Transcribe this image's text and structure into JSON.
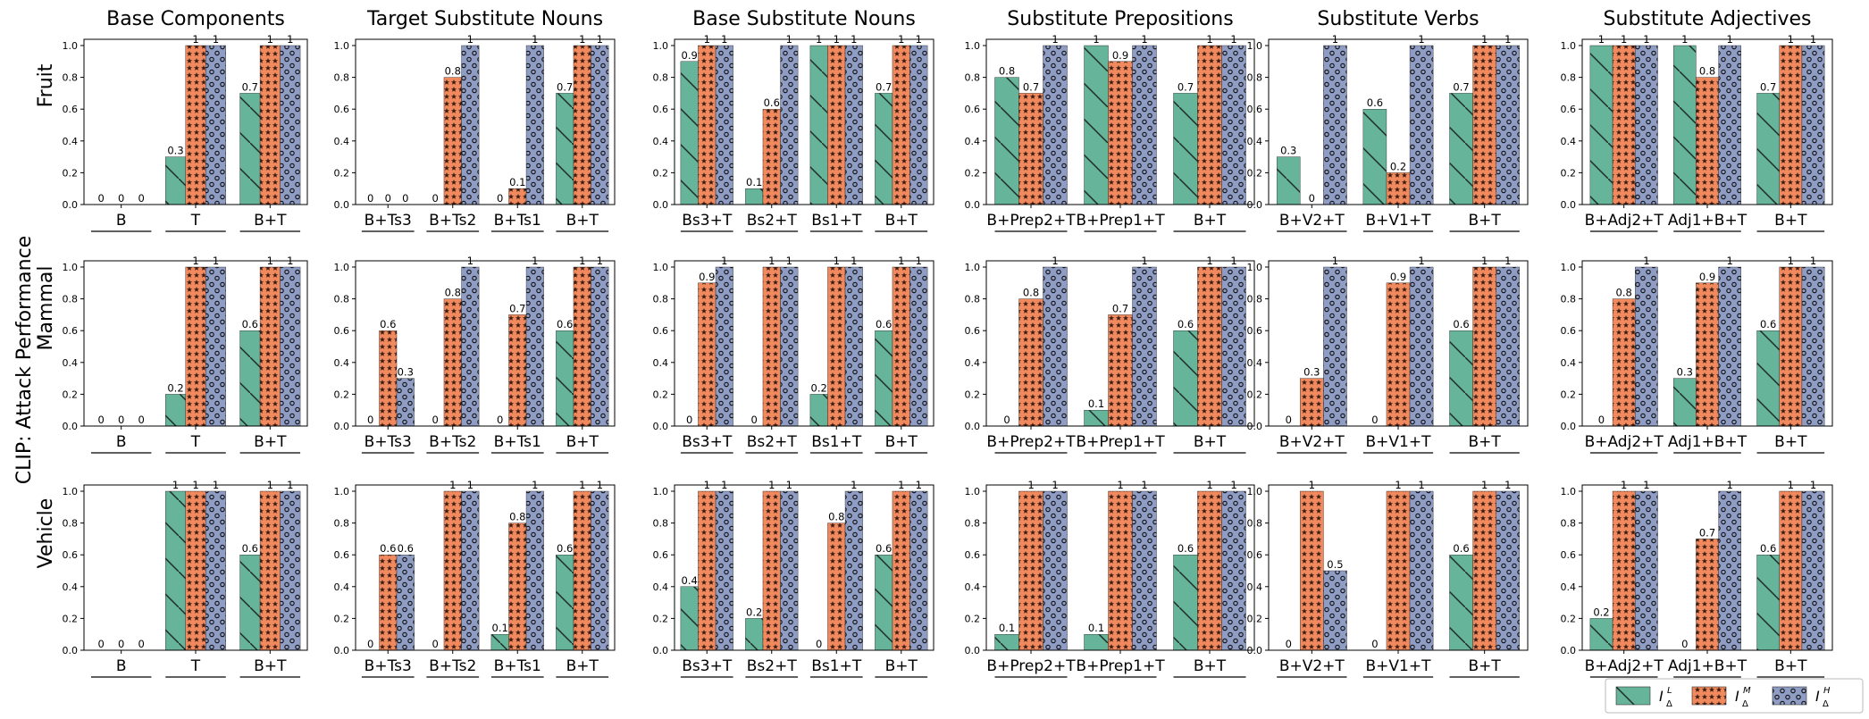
{
  "figure": {
    "y_axis_title": "CLIP: Attack Performance",
    "row_labels": [
      "Fruit",
      "Mammal",
      "Vehicle"
    ],
    "legend": [
      {
        "label": "I",
        "sub": "Δ",
        "sup": "L",
        "color": "#66b49a"
      },
      {
        "label": "I",
        "sub": "Δ",
        "sup": "M",
        "color": "#f0895d"
      },
      {
        "label": "I",
        "sub": "Δ",
        "sup": "H",
        "color": "#8f9dc5"
      }
    ],
    "yticks": [
      "0.0",
      "0.2",
      "0.4",
      "0.6",
      "0.8",
      "1.0"
    ]
  },
  "chart_data": [
    {
      "type": "bar",
      "row": "Fruit",
      "title": "Base Components",
      "categories": [
        "B",
        "T",
        "B+T"
      ],
      "ylim": [
        0,
        1
      ],
      "series": [
        {
          "name": "I_L",
          "values": [
            0,
            0.3,
            0.7
          ]
        },
        {
          "name": "I_M",
          "values": [
            0,
            1,
            1
          ]
        },
        {
          "name": "I_H",
          "values": [
            0,
            1,
            1
          ]
        }
      ],
      "labels": [
        [
          "0",
          "0.3",
          "0.7"
        ],
        [
          "0",
          "1",
          "1"
        ],
        [
          "0",
          "1",
          "1"
        ]
      ]
    },
    {
      "type": "bar",
      "row": "Fruit",
      "title": "Target Substitute Nouns",
      "categories": [
        "B+Ts3",
        "B+Ts2",
        "B+Ts1",
        "B+T"
      ],
      "ylim": [
        0,
        1
      ],
      "series": [
        {
          "name": "I_L",
          "values": [
            0,
            0,
            0,
            0.7
          ]
        },
        {
          "name": "I_M",
          "values": [
            0,
            0.8,
            0.1,
            1
          ]
        },
        {
          "name": "I_H",
          "values": [
            0,
            1,
            1,
            1
          ]
        }
      ],
      "labels": [
        [
          "0",
          "0",
          "0",
          "0.7"
        ],
        [
          "0",
          "0.8",
          "0.1",
          "1"
        ],
        [
          "0",
          "1",
          "1",
          "1"
        ]
      ]
    },
    {
      "type": "bar",
      "row": "Fruit",
      "title": "Base Substitute Nouns",
      "categories": [
        "Bs3+T",
        "Bs2+T",
        "Bs1+T",
        "B+T"
      ],
      "ylim": [
        0,
        1
      ],
      "series": [
        {
          "name": "I_L",
          "values": [
            0.9,
            0.1,
            1,
            0.7
          ]
        },
        {
          "name": "I_M",
          "values": [
            1,
            0.6,
            1,
            1
          ]
        },
        {
          "name": "I_H",
          "values": [
            1,
            1,
            1,
            1
          ]
        }
      ],
      "labels": [
        [
          "0.9",
          "0.1",
          "1",
          "0.7"
        ],
        [
          "1",
          "0.6",
          "1",
          "1"
        ],
        [
          "1",
          "1",
          "1",
          "1"
        ]
      ]
    },
    {
      "type": "bar",
      "row": "Fruit",
      "title": "Substitute Prepositions",
      "categories": [
        "B+Prep2+T",
        "B+Prep1+T",
        "B+T"
      ],
      "ylim": [
        0,
        1
      ],
      "series": [
        {
          "name": "I_L",
          "values": [
            0.8,
            1,
            0.7
          ]
        },
        {
          "name": "I_M",
          "values": [
            0.7,
            0.9,
            1
          ]
        },
        {
          "name": "I_H",
          "values": [
            1,
            1,
            1
          ]
        }
      ],
      "labels": [
        [
          "0.8",
          "1",
          "0.7"
        ],
        [
          "0.7",
          "0.9",
          "1"
        ],
        [
          "1",
          "1",
          "1"
        ]
      ]
    },
    {
      "type": "bar",
      "row": "Fruit",
      "title": "Substitute Verbs",
      "categories": [
        "B+V2+T",
        "B+V1+T",
        "B+T"
      ],
      "ylim": [
        0,
        1
      ],
      "series": [
        {
          "name": "I_L",
          "values": [
            0.3,
            0.6,
            0.7
          ]
        },
        {
          "name": "I_M",
          "values": [
            0,
            0.2,
            1
          ]
        },
        {
          "name": "I_H",
          "values": [
            1,
            1,
            1
          ]
        }
      ],
      "labels": [
        [
          "0.3",
          "0.6",
          "0.7"
        ],
        [
          "0",
          "0.2",
          "1"
        ],
        [
          "1",
          "1",
          "1"
        ]
      ]
    },
    {
      "type": "bar",
      "row": "Fruit",
      "title": "Substitute Adjectives",
      "categories": [
        "B+Adj2+T",
        "Adj1+B+T",
        "B+T"
      ],
      "ylim": [
        0,
        1
      ],
      "series": [
        {
          "name": "I_L",
          "values": [
            1,
            1,
            0.7
          ]
        },
        {
          "name": "I_M",
          "values": [
            1,
            0.8,
            1
          ]
        },
        {
          "name": "I_H",
          "values": [
            1,
            1,
            1
          ]
        }
      ],
      "labels": [
        [
          "1",
          "1",
          "0.7"
        ],
        [
          "1",
          "0.8",
          "1"
        ],
        [
          "1",
          "1",
          "1"
        ]
      ]
    },
    {
      "type": "bar",
      "row": "Mammal",
      "title": "Base Components",
      "categories": [
        "B",
        "T",
        "B+T"
      ],
      "ylim": [
        0,
        1
      ],
      "series": [
        {
          "name": "I_L",
          "values": [
            0,
            0.2,
            0.6
          ]
        },
        {
          "name": "I_M",
          "values": [
            0,
            1,
            1
          ]
        },
        {
          "name": "I_H",
          "values": [
            0,
            1,
            1
          ]
        }
      ],
      "labels": [
        [
          "0",
          "0.2",
          "0.6"
        ],
        [
          "0",
          "1",
          "1"
        ],
        [
          "0",
          "1",
          "1"
        ]
      ]
    },
    {
      "type": "bar",
      "row": "Mammal",
      "title": "Target Substitute Nouns",
      "categories": [
        "B+Ts3",
        "B+Ts2",
        "B+Ts1",
        "B+T"
      ],
      "ylim": [
        0,
        1
      ],
      "series": [
        {
          "name": "I_L",
          "values": [
            0,
            0,
            0,
            0.6
          ]
        },
        {
          "name": "I_M",
          "values": [
            0.6,
            0.8,
            0.7,
            1
          ]
        },
        {
          "name": "I_H",
          "values": [
            0.3,
            1,
            1,
            1
          ]
        }
      ],
      "labels": [
        [
          "0",
          "0",
          "0",
          "0.6"
        ],
        [
          "0.6",
          "0.8",
          "0.7",
          "1"
        ],
        [
          "0.3",
          "1",
          "1",
          "1"
        ]
      ]
    },
    {
      "type": "bar",
      "row": "Mammal",
      "title": "Base Substitute Nouns",
      "categories": [
        "Bs3+T",
        "Bs2+T",
        "Bs1+T",
        "B+T"
      ],
      "ylim": [
        0,
        1
      ],
      "series": [
        {
          "name": "I_L",
          "values": [
            0,
            0,
            0.2,
            0.6
          ]
        },
        {
          "name": "I_M",
          "values": [
            0.9,
            1,
            1,
            1
          ]
        },
        {
          "name": "I_H",
          "values": [
            1,
            1,
            1,
            1
          ]
        }
      ],
      "labels": [
        [
          "0",
          "0",
          "0.2",
          "0.6"
        ],
        [
          "0.9",
          "1",
          "1",
          "1"
        ],
        [
          "1",
          "1",
          "1",
          "1"
        ]
      ]
    },
    {
      "type": "bar",
      "row": "Mammal",
      "title": "Substitute Prepositions",
      "categories": [
        "B+Prep2+T",
        "B+Prep1+T",
        "B+T"
      ],
      "ylim": [
        0,
        1
      ],
      "series": [
        {
          "name": "I_L",
          "values": [
            0,
            0.1,
            0.6
          ]
        },
        {
          "name": "I_M",
          "values": [
            0.8,
            0.7,
            1
          ]
        },
        {
          "name": "I_H",
          "values": [
            1,
            1,
            1
          ]
        }
      ],
      "labels": [
        [
          "0",
          "0.1",
          "0.6"
        ],
        [
          "0.8",
          "0.7",
          "1"
        ],
        [
          "1",
          "1",
          "1"
        ]
      ]
    },
    {
      "type": "bar",
      "row": "Mammal",
      "title": "Substitute Verbs",
      "categories": [
        "B+V2+T",
        "B+V1+T",
        "B+T"
      ],
      "ylim": [
        0,
        1
      ],
      "series": [
        {
          "name": "I_L",
          "values": [
            0,
            0,
            0.6
          ]
        },
        {
          "name": "I_M",
          "values": [
            0.3,
            0.9,
            1
          ]
        },
        {
          "name": "I_H",
          "values": [
            1,
            1,
            1
          ]
        }
      ],
      "labels": [
        [
          "0",
          "0",
          "0.6"
        ],
        [
          "0.3",
          "0.9",
          "1"
        ],
        [
          "1",
          "1",
          "1"
        ]
      ]
    },
    {
      "type": "bar",
      "row": "Mammal",
      "title": "Substitute Adjectives",
      "categories": [
        "B+Adj2+T",
        "Adj1+B+T",
        "B+T"
      ],
      "ylim": [
        0,
        1
      ],
      "series": [
        {
          "name": "I_L",
          "values": [
            0,
            0.3,
            0.6
          ]
        },
        {
          "name": "I_M",
          "values": [
            0.8,
            0.9,
            1
          ]
        },
        {
          "name": "I_H",
          "values": [
            1,
            1,
            1
          ]
        }
      ],
      "labels": [
        [
          "0",
          "0.3",
          "0.6"
        ],
        [
          "0.8",
          "0.9",
          "1"
        ],
        [
          "1",
          "1",
          "1"
        ]
      ]
    },
    {
      "type": "bar",
      "row": "Vehicle",
      "title": "Base Components",
      "categories": [
        "B",
        "T",
        "B+T"
      ],
      "ylim": [
        0,
        1
      ],
      "series": [
        {
          "name": "I_L",
          "values": [
            0,
            1,
            0.6
          ]
        },
        {
          "name": "I_M",
          "values": [
            0,
            1,
            1
          ]
        },
        {
          "name": "I_H",
          "values": [
            0,
            1,
            1
          ]
        }
      ],
      "labels": [
        [
          "0",
          "1",
          "0.6"
        ],
        [
          "0",
          "1",
          "1"
        ],
        [
          "0",
          "1",
          "1"
        ]
      ]
    },
    {
      "type": "bar",
      "row": "Vehicle",
      "title": "Target Substitute Nouns",
      "categories": [
        "B+Ts3",
        "B+Ts2",
        "B+Ts1",
        "B+T"
      ],
      "ylim": [
        0,
        1
      ],
      "series": [
        {
          "name": "I_L",
          "values": [
            0,
            0,
            0.1,
            0.6
          ]
        },
        {
          "name": "I_M",
          "values": [
            0.6,
            1,
            0.8,
            1
          ]
        },
        {
          "name": "I_H",
          "values": [
            0.6,
            1,
            1,
            1
          ]
        }
      ],
      "labels": [
        [
          "0",
          "0",
          "0.1",
          "0.6"
        ],
        [
          "0.6",
          "1",
          "0.8",
          "1"
        ],
        [
          "0.6",
          "1",
          "1",
          "1"
        ]
      ]
    },
    {
      "type": "bar",
      "row": "Vehicle",
      "title": "Base Substitute Nouns",
      "categories": [
        "Bs3+T",
        "Bs2+T",
        "Bs1+T",
        "B+T"
      ],
      "ylim": [
        0,
        1
      ],
      "series": [
        {
          "name": "I_L",
          "values": [
            0.4,
            0.2,
            0,
            0.6
          ]
        },
        {
          "name": "I_M",
          "values": [
            1,
            1,
            0.8,
            1
          ]
        },
        {
          "name": "I_H",
          "values": [
            1,
            1,
            1,
            1
          ]
        }
      ],
      "labels": [
        [
          "0.4",
          "0.2",
          "0",
          "0.6"
        ],
        [
          "1",
          "1",
          "0.8",
          "1"
        ],
        [
          "1",
          "1",
          "1",
          "1"
        ]
      ]
    },
    {
      "type": "bar",
      "row": "Vehicle",
      "title": "Substitute Prepositions",
      "categories": [
        "B+Prep2+T",
        "B+Prep1+T",
        "B+T"
      ],
      "ylim": [
        0,
        1
      ],
      "series": [
        {
          "name": "I_L",
          "values": [
            0.1,
            0.1,
            0.6
          ]
        },
        {
          "name": "I_M",
          "values": [
            1,
            1,
            1
          ]
        },
        {
          "name": "I_H",
          "values": [
            1,
            1,
            1
          ]
        }
      ],
      "labels": [
        [
          "0.1",
          "0.1",
          "0.6"
        ],
        [
          "1",
          "1",
          "1"
        ],
        [
          "1",
          "1",
          "1"
        ]
      ]
    },
    {
      "type": "bar",
      "row": "Vehicle",
      "title": "Substitute Verbs",
      "categories": [
        "B+V2+T",
        "B+V1+T",
        "B+T"
      ],
      "ylim": [
        0,
        1
      ],
      "series": [
        {
          "name": "I_L",
          "values": [
            0,
            0,
            0.6
          ]
        },
        {
          "name": "I_M",
          "values": [
            1,
            1,
            1
          ]
        },
        {
          "name": "I_H",
          "values": [
            0.5,
            1,
            1
          ]
        }
      ],
      "labels": [
        [
          "0",
          "0",
          "0.6"
        ],
        [
          "1",
          "1",
          "1"
        ],
        [
          "0.5",
          "1",
          "1"
        ]
      ]
    },
    {
      "type": "bar",
      "row": "Vehicle",
      "title": "Substitute Adjectives",
      "categories": [
        "B+Adj2+T",
        "Adj1+B+T",
        "B+T"
      ],
      "ylim": [
        0,
        1
      ],
      "series": [
        {
          "name": "I_L",
          "values": [
            0.2,
            0,
            0.6
          ]
        },
        {
          "name": "I_M",
          "values": [
            1,
            0.7,
            1
          ]
        },
        {
          "name": "I_H",
          "values": [
            1,
            1,
            1
          ]
        }
      ],
      "labels": [
        [
          "0.2",
          "0",
          "0.6"
        ],
        [
          "1",
          "0.7",
          "1"
        ],
        [
          "1",
          "1",
          "1"
        ]
      ]
    }
  ]
}
